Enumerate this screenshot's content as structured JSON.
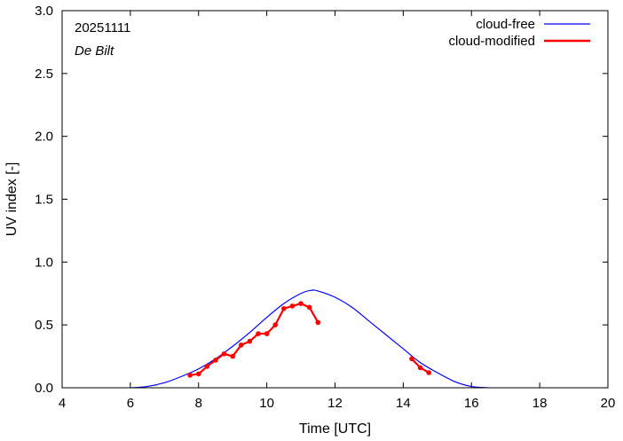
{
  "chart_data": {
    "type": "line",
    "annotations": {
      "date": "20251111",
      "station": "De Bilt"
    },
    "xlabel": "Time  [UTC]",
    "ylabel": "UV index  [-]",
    "xlim": [
      4,
      20
    ],
    "ylim": [
      0,
      3.0
    ],
    "xticks": [
      "4",
      "6",
      "8",
      "10",
      "12",
      "14",
      "16",
      "18",
      "20"
    ],
    "yticks": [
      "0.0",
      "0.5",
      "1.0",
      "1.5",
      "2.0",
      "2.5",
      "3.0"
    ],
    "grid": false,
    "legend_position": "top-right",
    "series": [
      {
        "name": "cloud-free",
        "color": "#0000ff",
        "style": "line",
        "x": [
          6.0,
          6.5,
          7.0,
          7.5,
          8.0,
          8.5,
          9.0,
          9.5,
          10.0,
          10.5,
          11.0,
          11.3,
          11.5,
          12.0,
          12.5,
          13.0,
          13.5,
          14.0,
          14.5,
          15.0,
          15.5,
          16.0,
          16.5
        ],
        "y": [
          0.0,
          0.01,
          0.04,
          0.09,
          0.15,
          0.23,
          0.33,
          0.44,
          0.56,
          0.67,
          0.75,
          0.775,
          0.77,
          0.72,
          0.64,
          0.53,
          0.42,
          0.31,
          0.2,
          0.12,
          0.05,
          0.01,
          0.0
        ]
      },
      {
        "name": "cloud-modified",
        "color": "#ff0000",
        "style": "line-points",
        "segments": [
          {
            "x": [
              7.75,
              8.0,
              8.25,
              8.5,
              8.75,
              9.0,
              9.25,
              9.5,
              9.75,
              10.0,
              10.25,
              10.5,
              10.75,
              11.0,
              11.25,
              11.5
            ],
            "y": [
              0.1,
              0.11,
              0.17,
              0.22,
              0.27,
              0.25,
              0.34,
              0.37,
              0.43,
              0.43,
              0.5,
              0.63,
              0.65,
              0.67,
              0.64,
              0.52
            ]
          },
          {
            "x": [
              14.25,
              14.5,
              14.75
            ],
            "y": [
              0.23,
              0.16,
              0.12
            ]
          }
        ]
      }
    ]
  }
}
